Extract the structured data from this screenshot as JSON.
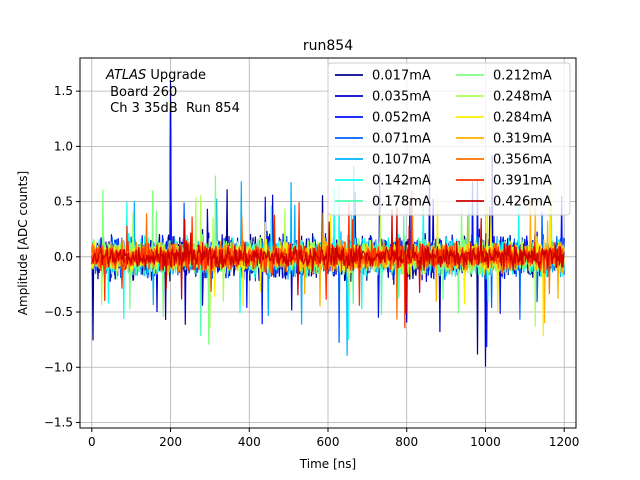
{
  "chart_data": {
    "type": "line",
    "title": "run854",
    "xlabel": "Time [ns]",
    "ylabel": "Amplitude [ADC counts]",
    "xlim": [
      -30,
      1230
    ],
    "ylim": [
      -1.55,
      1.8
    ],
    "xticks": [
      0,
      200,
      400,
      600,
      800,
      1000,
      1200
    ],
    "yticks": [
      -1.5,
      -1.0,
      -0.5,
      0.0,
      0.5,
      1.0,
      1.5
    ],
    "xtick_labels": [
      "0",
      "200",
      "400",
      "600",
      "800",
      "1000",
      "1200"
    ],
    "ytick_labels": [
      "−1.5",
      "−1.0",
      "−0.5",
      "0.0",
      "0.5",
      "1.0",
      "1.5"
    ],
    "grid": true,
    "legend_position": "top-right",
    "legend_columns": 2,
    "annotation": {
      "line1_italic": "ATLAS",
      "line1_rest": " Upgrade",
      "line2": " Board 260",
      "line3": " Ch 3 35dB  Run 854"
    },
    "x_range_ns": [
      0,
      1200
    ],
    "series": [
      {
        "name": "0.017mA",
        "color": "#00008f",
        "amplitude": 0.42,
        "spike": 1.6
      },
      {
        "name": "0.035mA",
        "color": "#0000c8",
        "amplitude": 0.4,
        "spike": 1.35
      },
      {
        "name": "0.052mA",
        "color": "#0010ff",
        "amplitude": 0.38,
        "spike": 1.2
      },
      {
        "name": "0.071mA",
        "color": "#0060ff",
        "amplitude": 0.37,
        "spike": 1.1
      },
      {
        "name": "0.107mA",
        "color": "#00b0ff",
        "amplitude": 0.36,
        "spike": 1.05
      },
      {
        "name": "0.142mA",
        "color": "#10ffef",
        "amplitude": 0.35,
        "spike": 1.0
      },
      {
        "name": "0.178mA",
        "color": "#50ffaf",
        "amplitude": 0.34,
        "spike": 0.95
      },
      {
        "name": "0.212mA",
        "color": "#7fff7f",
        "amplitude": 0.32,
        "spike": 0.85
      },
      {
        "name": "0.248mA",
        "color": "#afff50",
        "amplitude": 0.3,
        "spike": 0.8
      },
      {
        "name": "0.284mA",
        "color": "#ffef00",
        "amplitude": 0.29,
        "spike": 0.75
      },
      {
        "name": "0.319mA",
        "color": "#ffb000",
        "amplitude": 0.28,
        "spike": 0.7
      },
      {
        "name": "0.356mA",
        "color": "#ff7000",
        "amplitude": 0.27,
        "spike": 0.65
      },
      {
        "name": "0.391mA",
        "color": "#ff3000",
        "amplitude": 0.26,
        "spike": 0.6
      },
      {
        "name": "0.426mA",
        "color": "#cf0000",
        "amplitude": 0.24,
        "spike": 0.55
      }
    ]
  }
}
